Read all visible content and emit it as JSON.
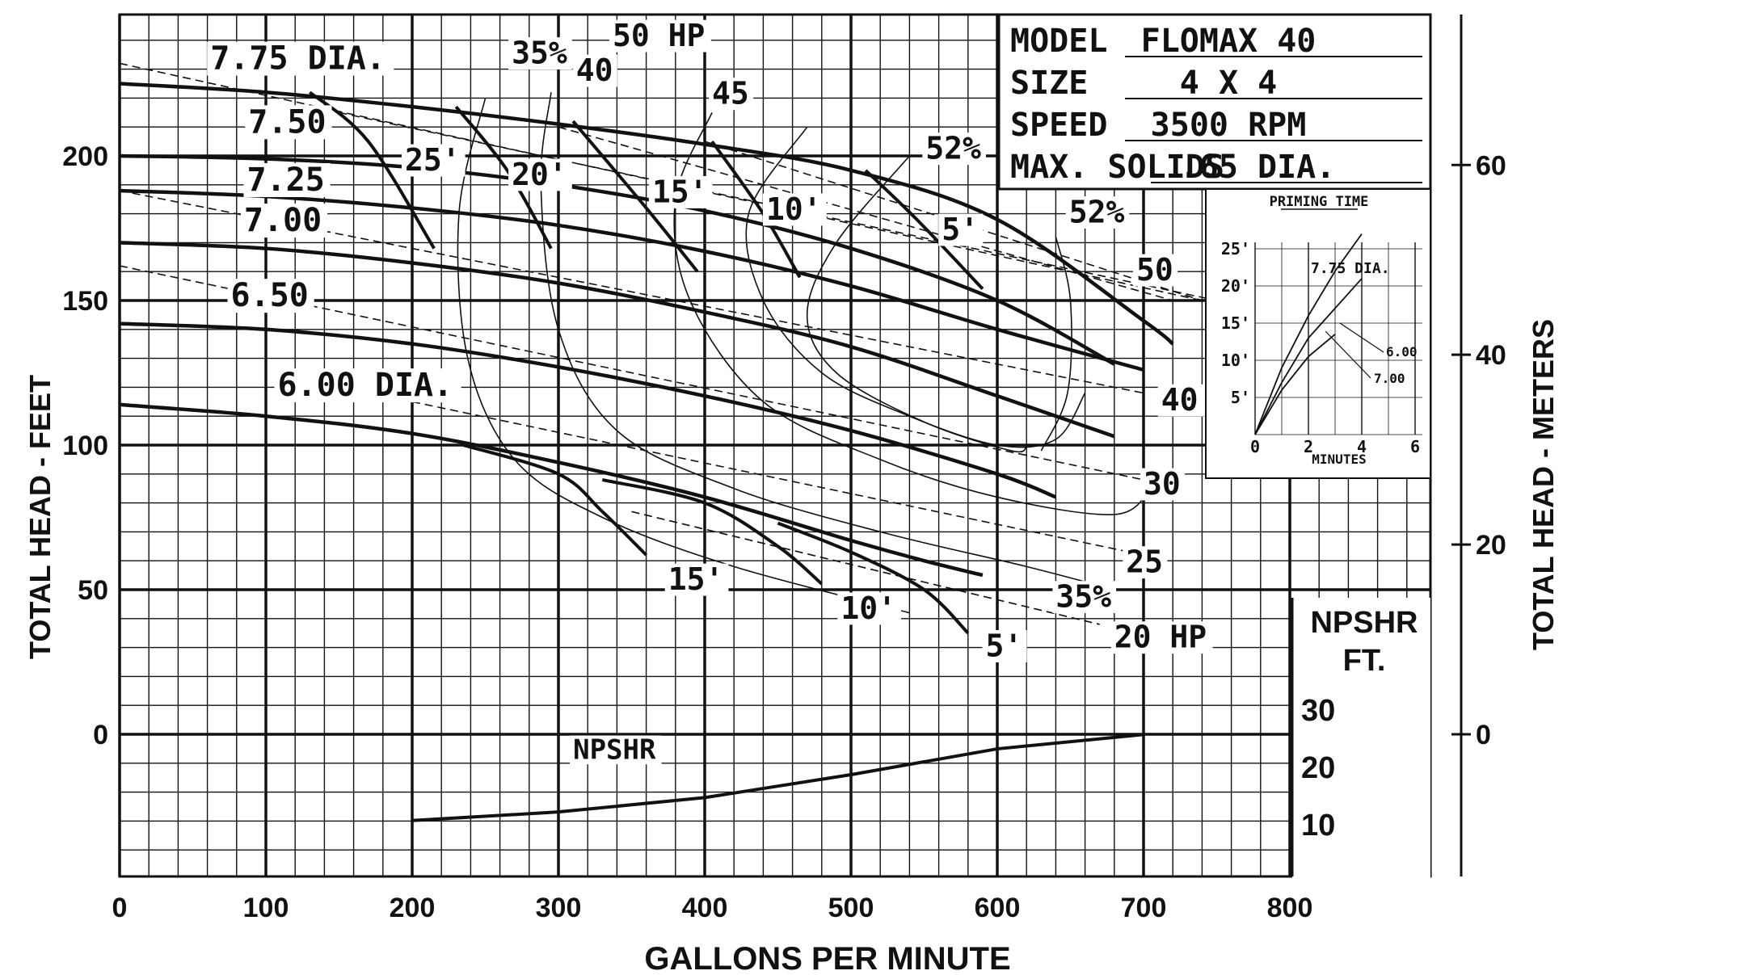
{
  "chart_data": {
    "type": "line",
    "title": "",
    "xlabel": "GALLONS PER MINUTE",
    "ylabel": "TOTAL HEAD - FEET",
    "y2label": "TOTAL HEAD - METERS",
    "xlim": [
      0,
      900
    ],
    "ylim": [
      -50,
      250
    ],
    "x_ticks": [
      "0",
      "100",
      "200",
      "300",
      "400",
      "500",
      "600",
      "700",
      "800"
    ],
    "y_ticks": [
      {
        "v": 0,
        "label": "0"
      },
      {
        "v": 50,
        "label": "50"
      },
      {
        "v": 100,
        "label": "100"
      },
      {
        "v": 150,
        "label": "150"
      },
      {
        "v": 200,
        "label": "200"
      }
    ],
    "y2_ticks": [
      {
        "v": 0,
        "label": "0"
      },
      {
        "v": 20,
        "label": "20"
      },
      {
        "v": 40,
        "label": "40"
      },
      {
        "v": 60,
        "label": "60"
      }
    ],
    "grid": true,
    "info": [
      {
        "label": "MODEL",
        "value": "FLOMAX 40"
      },
      {
        "label": "SIZE",
        "value": "4 X 4"
      },
      {
        "label": "SPEED",
        "value": "3500 RPM"
      },
      {
        "label": "MAX. SOLIDS",
        "value": ".65 DIA."
      }
    ],
    "series": [
      {
        "name": "7.75 DIA.",
        "label_at": [
          62,
          230
        ],
        "x": [
          0,
          100,
          200,
          300,
          400,
          500,
          600,
          700,
          720
        ],
        "y": [
          225,
          222,
          217,
          211,
          204,
          195,
          178,
          143,
          135
        ]
      },
      {
        "name": "7.50",
        "label_at": [
          88,
          208
        ],
        "x": [
          0,
          100,
          200,
          300,
          400,
          500,
          600,
          680
        ],
        "y": [
          200,
          199,
          196,
          190,
          181,
          168,
          150,
          128
        ]
      },
      {
        "name": "7.25",
        "label_at": [
          87,
          188
        ],
        "x": [
          0,
          100,
          200,
          300,
          400,
          500,
          600,
          700
        ],
        "y": [
          188,
          186,
          182,
          176,
          167,
          155,
          140,
          126
        ]
      },
      {
        "name": "7.00",
        "label_at": [
          85,
          174
        ],
        "x": [
          0,
          100,
          200,
          300,
          400,
          500,
          600,
          680
        ],
        "y": [
          170,
          168,
          163,
          156,
          146,
          134,
          117,
          103
        ]
      },
      {
        "name": "6.50",
        "label_at": [
          76,
          148
        ],
        "x": [
          0,
          100,
          200,
          300,
          400,
          500,
          600,
          640
        ],
        "y": [
          142,
          140,
          135,
          127,
          117,
          105,
          90,
          82
        ]
      },
      {
        "name": "6.00 DIA.",
        "label_at": [
          108,
          117
        ],
        "x": [
          0,
          100,
          200,
          300,
          400,
          500,
          550,
          590
        ],
        "y": [
          114,
          110,
          104,
          94,
          82,
          67,
          60,
          55
        ]
      }
    ],
    "hp_lines": [
      {
        "name": "50 HP",
        "label_at": [
          337,
          238
        ],
        "x": [
          0,
          740
        ],
        "y": [
          232,
          150
        ]
      },
      {
        "name": "40",
        "label_at": [
          312,
          226
        ],
        "x": [
          300,
          720
        ],
        "y": [
          210,
          150
        ]
      },
      {
        "name": "45",
        "label_at": [
          405,
          218
        ],
        "x": [
          400,
          740
        ],
        "y": [
          205,
          150
        ]
      },
      {
        "name": "50",
        "label_at": [
          695,
          157
        ],
        "x": [
          150,
          750
        ],
        "y": [
          215,
          150
        ]
      },
      {
        "name": "40 HP",
        "label_at": [
          712,
          112
        ],
        "x": [
          0,
          700
        ],
        "y": [
          188,
          118
        ]
      },
      {
        "name": "30",
        "label_at": [
          700,
          83
        ],
        "x": [
          0,
          700
        ],
        "y": [
          162,
          88
        ]
      },
      {
        "name": "25",
        "label_at": [
          688,
          56
        ],
        "x": [
          200,
          700
        ],
        "y": [
          115,
          62
        ]
      },
      {
        "name": "20 HP",
        "label_at": [
          680,
          30
        ],
        "x": [
          350,
          670
        ],
        "y": [
          77,
          38
        ]
      }
    ],
    "npshr_lines": [
      {
        "name": "25'",
        "label_at": [
          195,
          195
        ],
        "x": [
          130,
          170,
          215
        ],
        "y": [
          222,
          205,
          168
        ]
      },
      {
        "name": "20'",
        "label_at": [
          268,
          190
        ],
        "x": [
          230,
          265,
          295
        ],
        "y": [
          217,
          195,
          168
        ]
      },
      {
        "name": "15'",
        "label_at": [
          364,
          184
        ],
        "x": [
          310,
          360,
          395
        ],
        "y": [
          212,
          182,
          160
        ]
      },
      {
        "name": "10'",
        "label_at": [
          442,
          178
        ],
        "x": [
          405,
          440,
          465
        ],
        "y": [
          205,
          180,
          158
        ]
      },
      {
        "name": "5'",
        "label_at": [
          562,
          171
        ],
        "x": [
          510,
          545,
          590
        ],
        "y": [
          195,
          178,
          154
        ]
      },
      {
        "name": "15'",
        "label_at": [
          375,
          50
        ],
        "x": [
          235,
          300,
          330,
          360
        ],
        "y": [
          100,
          90,
          77,
          62
        ]
      },
      {
        "name": "10'",
        "label_at": [
          493,
          40
        ],
        "x": [
          330,
          400,
          450,
          480
        ],
        "y": [
          88,
          80,
          65,
          52
        ]
      },
      {
        "name": "5'",
        "label_at": [
          592,
          27
        ],
        "x": [
          450,
          500,
          550,
          580
        ],
        "y": [
          73,
          63,
          50,
          35
        ]
      }
    ],
    "efficiency_curves": [
      {
        "name": "35%",
        "label_at": [
          268,
          232
        ]
      },
      {
        "name": "52%",
        "label_at": [
          551,
          199
        ]
      },
      {
        "name": "52%",
        "label_at": [
          649,
          177
        ]
      },
      {
        "name": "35%",
        "label_at": [
          640,
          44
        ]
      }
    ],
    "npshr": {
      "label": "NPSHR",
      "unit_label": "NPSHR",
      "unit_label2": "FT.",
      "scale_ticks": [
        "30",
        "20",
        "10"
      ],
      "x": [
        200,
        300,
        400,
        500,
        600,
        700
      ],
      "y": [
        12,
        13.5,
        16,
        20,
        24.5,
        27
      ]
    },
    "priming_time": {
      "title": "PRIMING TIME",
      "xlabel": "MINUTES",
      "x_ticks": [
        "0",
        "2",
        "4",
        "6"
      ],
      "y_ticks": [
        "5'",
        "10'",
        "15'",
        "20'",
        "25'"
      ],
      "series": [
        {
          "name": "7.75 DIA.",
          "x": [
            0,
            1,
            2,
            3,
            4
          ],
          "y": [
            0,
            9,
            16,
            22,
            27
          ]
        },
        {
          "name": "6.00",
          "x": [
            0,
            1,
            2,
            3,
            4
          ],
          "y": [
            0,
            7,
            13,
            17,
            21
          ]
        },
        {
          "name": "7.00",
          "x": [
            0,
            1,
            2,
            3
          ],
          "y": [
            0,
            6,
            10.5,
            13.5
          ]
        }
      ]
    }
  }
}
